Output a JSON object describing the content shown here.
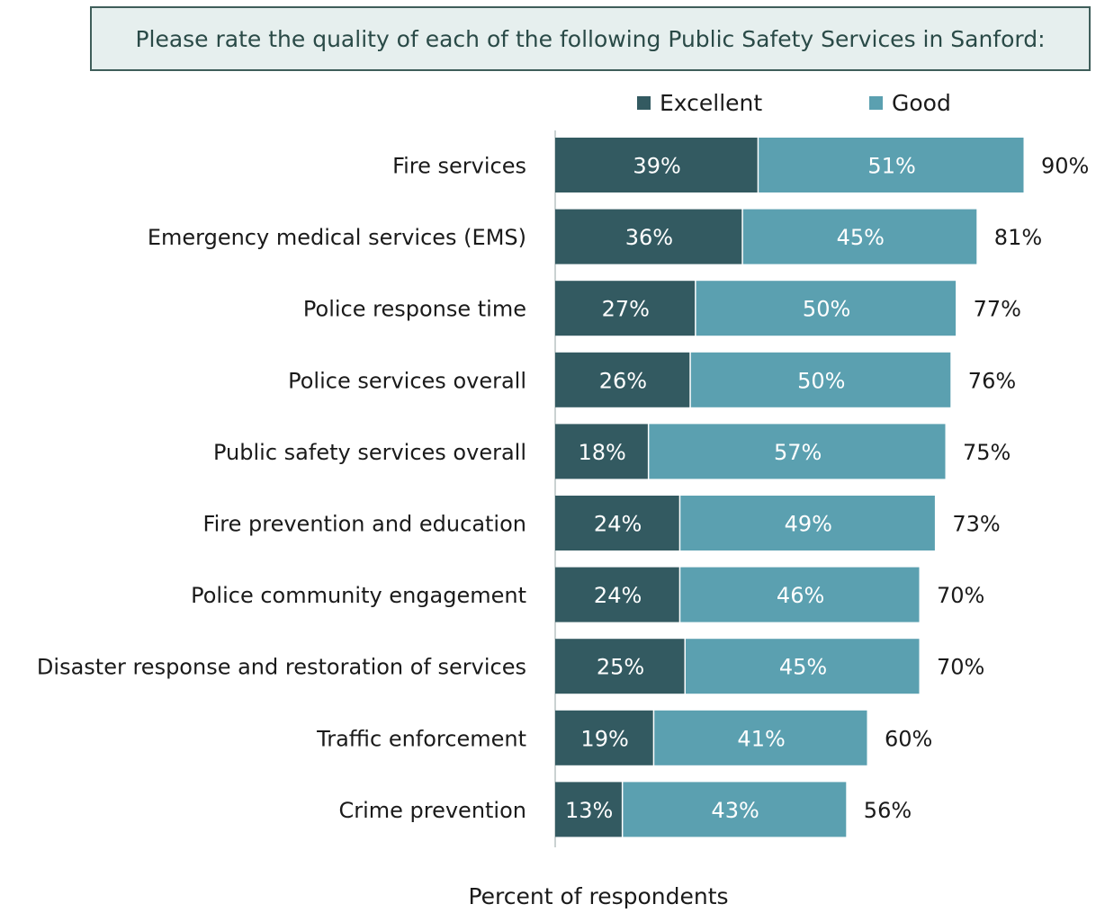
{
  "chart_data": {
    "type": "bar",
    "orientation": "horizontal",
    "stacked": true,
    "title": "Please rate the quality of each of the following Public Safety Services in Sanford:",
    "xlabel": "Percent of respondents",
    "ylabel": "",
    "categories": [
      "Fire services",
      "Emergency medical services (EMS)",
      "Police response time",
      "Police services overall",
      "Public safety services overall",
      "Fire prevention and education",
      "Police community engagement",
      "Disaster response and restoration of services",
      "Traffic enforcement",
      "Crime prevention"
    ],
    "series": [
      {
        "name": "Excellent",
        "color": "#335a61",
        "values": [
          39,
          36,
          27,
          26,
          18,
          24,
          24,
          25,
          19,
          13
        ],
        "labels": [
          "39%",
          "36%",
          "27%",
          "26%",
          "18%",
          "24%",
          "24%",
          "25%",
          "19%",
          "13%"
        ]
      },
      {
        "name": "Good",
        "color": "#5ba0b0",
        "values": [
          51,
          45,
          50,
          50,
          57,
          49,
          46,
          45,
          41,
          43
        ],
        "labels": [
          "51%",
          "45%",
          "50%",
          "50%",
          "57%",
          "49%",
          "46%",
          "45%",
          "41%",
          "43%"
        ]
      }
    ],
    "totals": [
      90,
      81,
      77,
      76,
      75,
      73,
      70,
      70,
      60,
      56
    ],
    "total_labels": [
      "90%",
      "81%",
      "77%",
      "76%",
      "75%",
      "73%",
      "70%",
      "70%",
      "60%",
      "56%"
    ],
    "xlim": [
      0,
      100
    ],
    "grid": false,
    "legend": "top"
  }
}
